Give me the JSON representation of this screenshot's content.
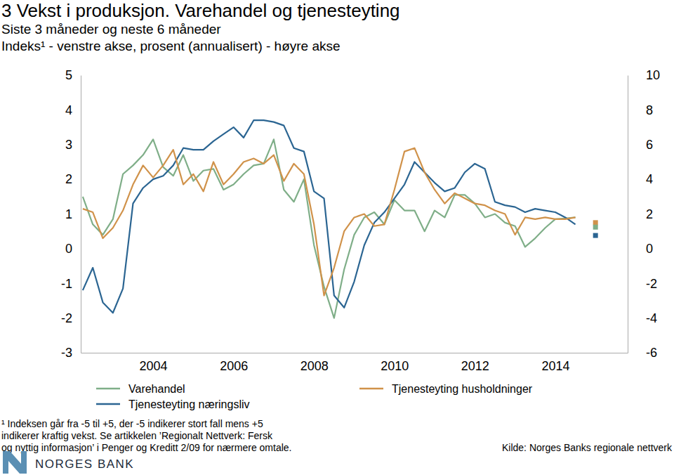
{
  "chart_data": {
    "type": "line",
    "title": "3  Vekst i produksjon. Varehandel og tjenesteyting",
    "subtitle": [
      "Siste 3 måneder og neste 6 måneder",
      "Indeks¹ - venstre akse, prosent (annualisert) - høyre akse"
    ],
    "footnote": [
      "¹ Indeksen går fra -5 til +5, der -5 indikerer stort fall mens +5",
      "indikerer kraftig vekst. Se artikkelen ’Regionalt Nettverk: Fersk",
      "og nyttig informasjon’ i Penger og Kreditt 2/09 for nærmere omtale."
    ],
    "source": "Kilde: Norges Banks regionale nettverk",
    "brand": "NORGES BANK",
    "x": [
      2002.25,
      2002.5,
      2002.75,
      2003,
      2003.25,
      2003.5,
      2003.75,
      2004,
      2004.25,
      2004.5,
      2004.75,
      2005,
      2005.25,
      2005.5,
      2005.75,
      2006,
      2006.25,
      2006.5,
      2006.75,
      2007,
      2007.25,
      2007.5,
      2007.75,
      2008,
      2008.25,
      2008.5,
      2008.75,
      2009,
      2009.25,
      2009.5,
      2009.75,
      2010,
      2010.25,
      2010.5,
      2010.75,
      2011,
      2011.25,
      2011.5,
      2011.75,
      2012,
      2012.25,
      2012.5,
      2012.75,
      2013,
      2013.25,
      2013.5,
      2013.75,
      2014,
      2014.25,
      2014.5,
      2015
    ],
    "xlim": [
      2002.2,
      2015.8
    ],
    "xticks": [
      2004,
      2006,
      2008,
      2010,
      2012,
      2014
    ],
    "ylim": [
      -3,
      5
    ],
    "yticks": [
      -3,
      -2,
      -1,
      0,
      1,
      2,
      3,
      4,
      5
    ],
    "y2lim": [
      -6,
      10
    ],
    "y2ticks": [
      -6,
      -4,
      -2,
      0,
      2,
      4,
      6,
      8,
      10
    ],
    "legend": "bottom",
    "series": [
      {
        "name": "Varehandel",
        "color": "#7fae88",
        "type": "line",
        "values": [
          1.5,
          0.7,
          0.4,
          0.85,
          2.15,
          2.4,
          2.7,
          3.15,
          2.35,
          2.1,
          2.7,
          1.95,
          2.25,
          2.3,
          1.7,
          1.85,
          2.15,
          2.4,
          2.45,
          3.15,
          1.7,
          1.35,
          2.0,
          0.1,
          -1.1,
          -2.0,
          -0.6,
          0.4,
          0.9,
          1.05,
          0.7,
          1.4,
          1.1,
          1.1,
          0.5,
          1.1,
          0.9,
          1.55,
          1.55,
          1.3,
          0.9,
          1.0,
          0.75,
          0.65,
          0.05,
          0.3,
          0.6,
          0.85,
          0.87,
          0.9,
          null
        ]
      },
      {
        "name": "Tjenesteyting næringsliv",
        "color": "#2b6592",
        "type": "line",
        "values": [
          -1.2,
          -0.55,
          -1.55,
          -1.85,
          -1.15,
          1.3,
          1.75,
          2.0,
          2.1,
          2.4,
          2.9,
          2.85,
          2.85,
          3.1,
          3.3,
          3.5,
          3.2,
          3.7,
          3.7,
          3.65,
          3.55,
          2.9,
          2.8,
          1.65,
          1.45,
          -1.35,
          -1.7,
          -0.95,
          0.1,
          0.75,
          1.05,
          1.45,
          1.85,
          2.5,
          2.2,
          1.9,
          1.65,
          1.75,
          2.2,
          2.45,
          2.3,
          1.35,
          1.25,
          1.2,
          1.05,
          1.15,
          1.1,
          1.05,
          0.9,
          0.7,
          null
        ]
      },
      {
        "name": "Tjenesteyting husholdninger",
        "color": "#d0924a",
        "type": "line",
        "values": [
          1.15,
          1.05,
          0.3,
          0.6,
          1.1,
          1.85,
          2.4,
          2.05,
          2.4,
          2.85,
          1.85,
          2.15,
          1.65,
          2.5,
          1.85,
          2.15,
          2.5,
          2.6,
          2.45,
          2.7,
          1.95,
          2.45,
          2.15,
          0.7,
          -1.35,
          -0.55,
          0.5,
          0.9,
          1.0,
          0.65,
          0.7,
          1.7,
          2.8,
          2.9,
          2.2,
          1.7,
          1.3,
          1.6,
          1.45,
          1.3,
          1.25,
          1.1,
          1.0,
          0.4,
          0.9,
          0.85,
          0.9,
          0.85,
          0.85,
          0.9,
          null
        ]
      },
      {
        "color": "#d0924a",
        "type": "scatter",
        "marker": "square",
        "values": [
          null,
          null,
          null,
          null,
          null,
          null,
          null,
          null,
          null,
          null,
          null,
          null,
          null,
          null,
          null,
          null,
          null,
          null,
          null,
          null,
          null,
          null,
          null,
          null,
          null,
          null,
          null,
          null,
          null,
          null,
          null,
          null,
          null,
          null,
          null,
          null,
          null,
          null,
          null,
          null,
          null,
          null,
          null,
          null,
          null,
          null,
          null,
          null,
          null,
          null,
          0.75
        ]
      },
      {
        "color": "#7fae88",
        "type": "scatter",
        "marker": "square",
        "values": [
          null,
          null,
          null,
          null,
          null,
          null,
          null,
          null,
          null,
          null,
          null,
          null,
          null,
          null,
          null,
          null,
          null,
          null,
          null,
          null,
          null,
          null,
          null,
          null,
          null,
          null,
          null,
          null,
          null,
          null,
          null,
          null,
          null,
          null,
          null,
          null,
          null,
          null,
          null,
          null,
          null,
          null,
          null,
          null,
          null,
          null,
          null,
          null,
          null,
          null,
          0.62
        ]
      },
      {
        "color": "#2b6592",
        "type": "scatter",
        "marker": "square",
        "values": [
          null,
          null,
          null,
          null,
          null,
          null,
          null,
          null,
          null,
          null,
          null,
          null,
          null,
          null,
          null,
          null,
          null,
          null,
          null,
          null,
          null,
          null,
          null,
          null,
          null,
          null,
          null,
          null,
          null,
          null,
          null,
          null,
          null,
          null,
          null,
          null,
          null,
          null,
          null,
          null,
          null,
          null,
          null,
          null,
          null,
          null,
          null,
          null,
          null,
          null,
          0.38
        ]
      }
    ]
  }
}
